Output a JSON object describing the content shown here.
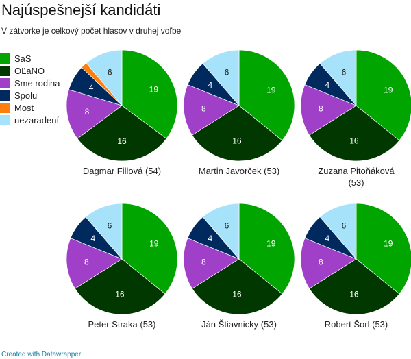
{
  "title": "Najúspešnejší kandidáti",
  "subtitle": "V zátvorke je celkový počet hlasov v druhej voľbe",
  "footer": "Created with Datawrapper",
  "chart_data": {
    "type": "pie",
    "legend_position": "left",
    "categories": [
      "SaS",
      "OĽaNO",
      "Sme rodina",
      "Spolu",
      "Most",
      "nezaradení"
    ],
    "colors": [
      "#00a500",
      "#003800",
      "#a03fc8",
      "#002a5e",
      "#ff7f0e",
      "#a6e3fa"
    ],
    "label_colors": [
      "#ffffff",
      "#ffffff",
      "#ffffff",
      "#ffffff",
      "#ffffff",
      "#1a1a1a"
    ],
    "charts": [
      {
        "title": "Dagmar Fillová (54)",
        "values": [
          19,
          16,
          8,
          4,
          1,
          6
        ]
      },
      {
        "title": "Martin Javorček (53)",
        "values": [
          19,
          16,
          8,
          4,
          0,
          6
        ]
      },
      {
        "title": "Zuzana Pitoňáková (53)",
        "values": [
          19,
          16,
          8,
          4,
          0,
          6
        ]
      },
      {
        "title": "Peter Straka (53)",
        "values": [
          19,
          16,
          8,
          4,
          0,
          6
        ]
      },
      {
        "title": "Ján Štiavnicky (53)",
        "values": [
          19,
          16,
          8,
          4,
          0,
          6
        ]
      },
      {
        "title": "Robert Šorl (53)",
        "values": [
          19,
          16,
          8,
          4,
          0,
          6
        ]
      }
    ]
  }
}
